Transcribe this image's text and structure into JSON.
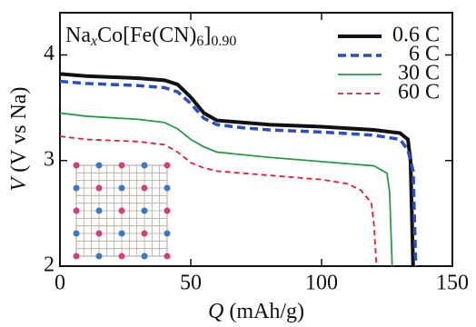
{
  "chart_data": {
    "type": "line",
    "title_parts": [
      "Na",
      "x",
      "Co[Fe(CN)",
      "6",
      "]",
      "0.90"
    ],
    "xlabel_var": "Q",
    "xlabel_unit": "(mAh/g)",
    "ylabel_var": "V",
    "ylabel_unit": "(V vs Na)",
    "xlim": [
      0,
      150
    ],
    "ylim": [
      2,
      4.4
    ],
    "xticks": [
      0,
      50,
      100,
      150
    ],
    "yticks": [
      2,
      3,
      4
    ],
    "legend": "upper right",
    "series": [
      {
        "name": "0.6 C",
        "color": "#111111",
        "width": 4,
        "dash": "none",
        "x": [
          0,
          10,
          30,
          40,
          45,
          50,
          55,
          60,
          70,
          80,
          100,
          120,
          130,
          133,
          134,
          135
        ],
        "values": [
          3.82,
          3.8,
          3.78,
          3.76,
          3.72,
          3.6,
          3.45,
          3.38,
          3.36,
          3.34,
          3.32,
          3.29,
          3.26,
          3.2,
          3.0,
          2.0
        ]
      },
      {
        "name": "6 C",
        "color": "#2b4fbf",
        "width": 3.5,
        "dash": "9,5",
        "x": [
          0,
          10,
          30,
          40,
          45,
          50,
          55,
          60,
          70,
          80,
          100,
          120,
          130,
          133,
          135,
          136
        ],
        "values": [
          3.75,
          3.73,
          3.71,
          3.69,
          3.65,
          3.54,
          3.4,
          3.34,
          3.31,
          3.29,
          3.27,
          3.24,
          3.2,
          3.1,
          2.9,
          2.0
        ]
      },
      {
        "name": "30 C",
        "color": "#2a9a4a",
        "width": 1.8,
        "dash": "none",
        "x": [
          0,
          10,
          30,
          40,
          45,
          50,
          55,
          60,
          80,
          100,
          120,
          125,
          126,
          127
        ],
        "values": [
          3.45,
          3.42,
          3.39,
          3.36,
          3.3,
          3.2,
          3.13,
          3.08,
          3.03,
          2.99,
          2.95,
          2.88,
          2.7,
          2.0
        ]
      },
      {
        "name": "60 C",
        "color": "#e02030",
        "width": 1.8,
        "dash": "6,4",
        "x": [
          0,
          10,
          30,
          40,
          45,
          50,
          55,
          60,
          80,
          100,
          110,
          115,
          119,
          120,
          121
        ],
        "values": [
          3.23,
          3.2,
          3.18,
          3.15,
          3.08,
          2.98,
          2.93,
          2.9,
          2.86,
          2.82,
          2.78,
          2.72,
          2.6,
          2.4,
          2.0
        ]
      }
    ]
  }
}
